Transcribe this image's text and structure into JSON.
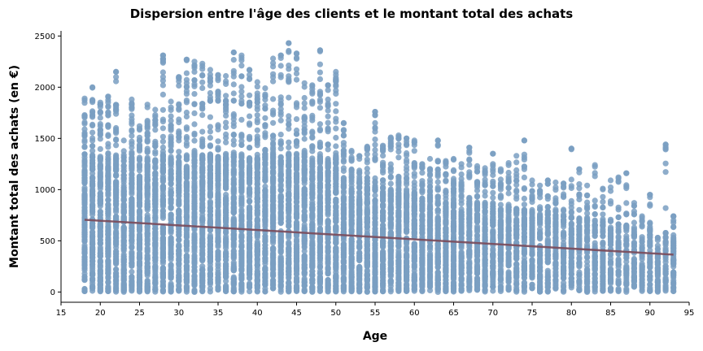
{
  "chart_data": {
    "type": "scatter",
    "title": "Dispersion entre l'âge des clients et le montant total des achats",
    "xlabel": "Age",
    "ylabel": "Montant total des achats (en €)",
    "xlim": [
      15,
      95
    ],
    "ylim": [
      -100,
      2550
    ],
    "x_ticks": [
      15,
      20,
      25,
      30,
      35,
      40,
      45,
      50,
      55,
      60,
      65,
      70,
      75,
      80,
      85,
      90,
      95
    ],
    "y_ticks": [
      0,
      500,
      1000,
      1500,
      2000,
      2500
    ],
    "grid": false,
    "legend": "none",
    "point_color": "#7a9fc2",
    "regression_color": "#7a4a5a",
    "regression_line": {
      "x": [
        18,
        93
      ],
      "y": [
        705,
        365
      ]
    },
    "age_range": [
      18,
      93
    ],
    "max_by_age": [
      [
        18,
        1890
      ],
      [
        19,
        2000
      ],
      [
        20,
        1850
      ],
      [
        21,
        1910
      ],
      [
        22,
        2150
      ],
      [
        23,
        1480
      ],
      [
        24,
        1880
      ],
      [
        25,
        1620
      ],
      [
        26,
        1830
      ],
      [
        27,
        1780
      ],
      [
        28,
        2310
      ],
      [
        29,
        1860
      ],
      [
        30,
        2100
      ],
      [
        31,
        2270
      ],
      [
        32,
        2250
      ],
      [
        33,
        2230
      ],
      [
        34,
        2170
      ],
      [
        35,
        2120
      ],
      [
        36,
        2110
      ],
      [
        37,
        2340
      ],
      [
        38,
        2310
      ],
      [
        39,
        2170
      ],
      [
        40,
        2050
      ],
      [
        41,
        1990
      ],
      [
        42,
        2280
      ],
      [
        43,
        2310
      ],
      [
        44,
        2430
      ],
      [
        45,
        2330
      ],
      [
        46,
        2040
      ],
      [
        47,
        2020
      ],
      [
        48,
        2360
      ],
      [
        49,
        2020
      ],
      [
        50,
        2150
      ],
      [
        51,
        1650
      ],
      [
        52,
        1380
      ],
      [
        53,
        1330
      ],
      [
        54,
        1420
      ],
      [
        55,
        1760
      ],
      [
        56,
        1430
      ],
      [
        57,
        1510
      ],
      [
        58,
        1530
      ],
      [
        59,
        1500
      ],
      [
        60,
        1480
      ],
      [
        61,
        1250
      ],
      [
        62,
        1300
      ],
      [
        63,
        1480
      ],
      [
        64,
        1280
      ],
      [
        65,
        1300
      ],
      [
        66,
        1250
      ],
      [
        67,
        1410
      ],
      [
        68,
        1230
      ],
      [
        69,
        1210
      ],
      [
        70,
        1350
      ],
      [
        71,
        1200
      ],
      [
        72,
        1260
      ],
      [
        73,
        1330
      ],
      [
        74,
        1480
      ],
      [
        75,
        1090
      ],
      [
        76,
        1040
      ],
      [
        77,
        1090
      ],
      [
        78,
        1070
      ],
      [
        79,
        1060
      ],
      [
        80,
        1400
      ],
      [
        81,
        1200
      ],
      [
        82,
        1040
      ],
      [
        83,
        1240
      ],
      [
        84,
        1010
      ],
      [
        85,
        1090
      ],
      [
        86,
        1120
      ],
      [
        87,
        1160
      ],
      [
        88,
        870
      ],
      [
        89,
        740
      ],
      [
        90,
        950
      ],
      [
        91,
        530
      ],
      [
        92,
        1440
      ],
      [
        93,
        740
      ]
    ],
    "sample_points": [
      [
        28,
        2310
      ],
      [
        37,
        2340
      ],
      [
        44,
        2430
      ],
      [
        48,
        2360
      ],
      [
        22,
        2150
      ],
      [
        31,
        2270
      ],
      [
        43,
        2310
      ],
      [
        55,
        1760
      ],
      [
        80,
        1400
      ],
      [
        92,
        1440
      ],
      [
        74,
        1480
      ],
      [
        63,
        1480
      ],
      [
        59,
        1500
      ],
      [
        67,
        1410
      ],
      [
        70,
        1350
      ],
      [
        87,
        1160
      ],
      [
        90,
        950
      ],
      [
        93,
        740
      ],
      [
        92,
        480
      ],
      [
        92,
        40
      ],
      [
        93,
        270
      ],
      [
        91,
        270
      ],
      [
        89,
        130
      ],
      [
        88,
        150
      ],
      [
        86,
        200
      ],
      [
        84,
        100
      ],
      [
        83,
        130
      ],
      [
        82,
        80
      ],
      [
        81,
        140
      ],
      [
        79,
        60
      ],
      [
        60,
        10
      ],
      [
        50,
        10
      ],
      [
        40,
        10
      ],
      [
        30,
        10
      ],
      [
        20,
        10
      ]
    ]
  }
}
